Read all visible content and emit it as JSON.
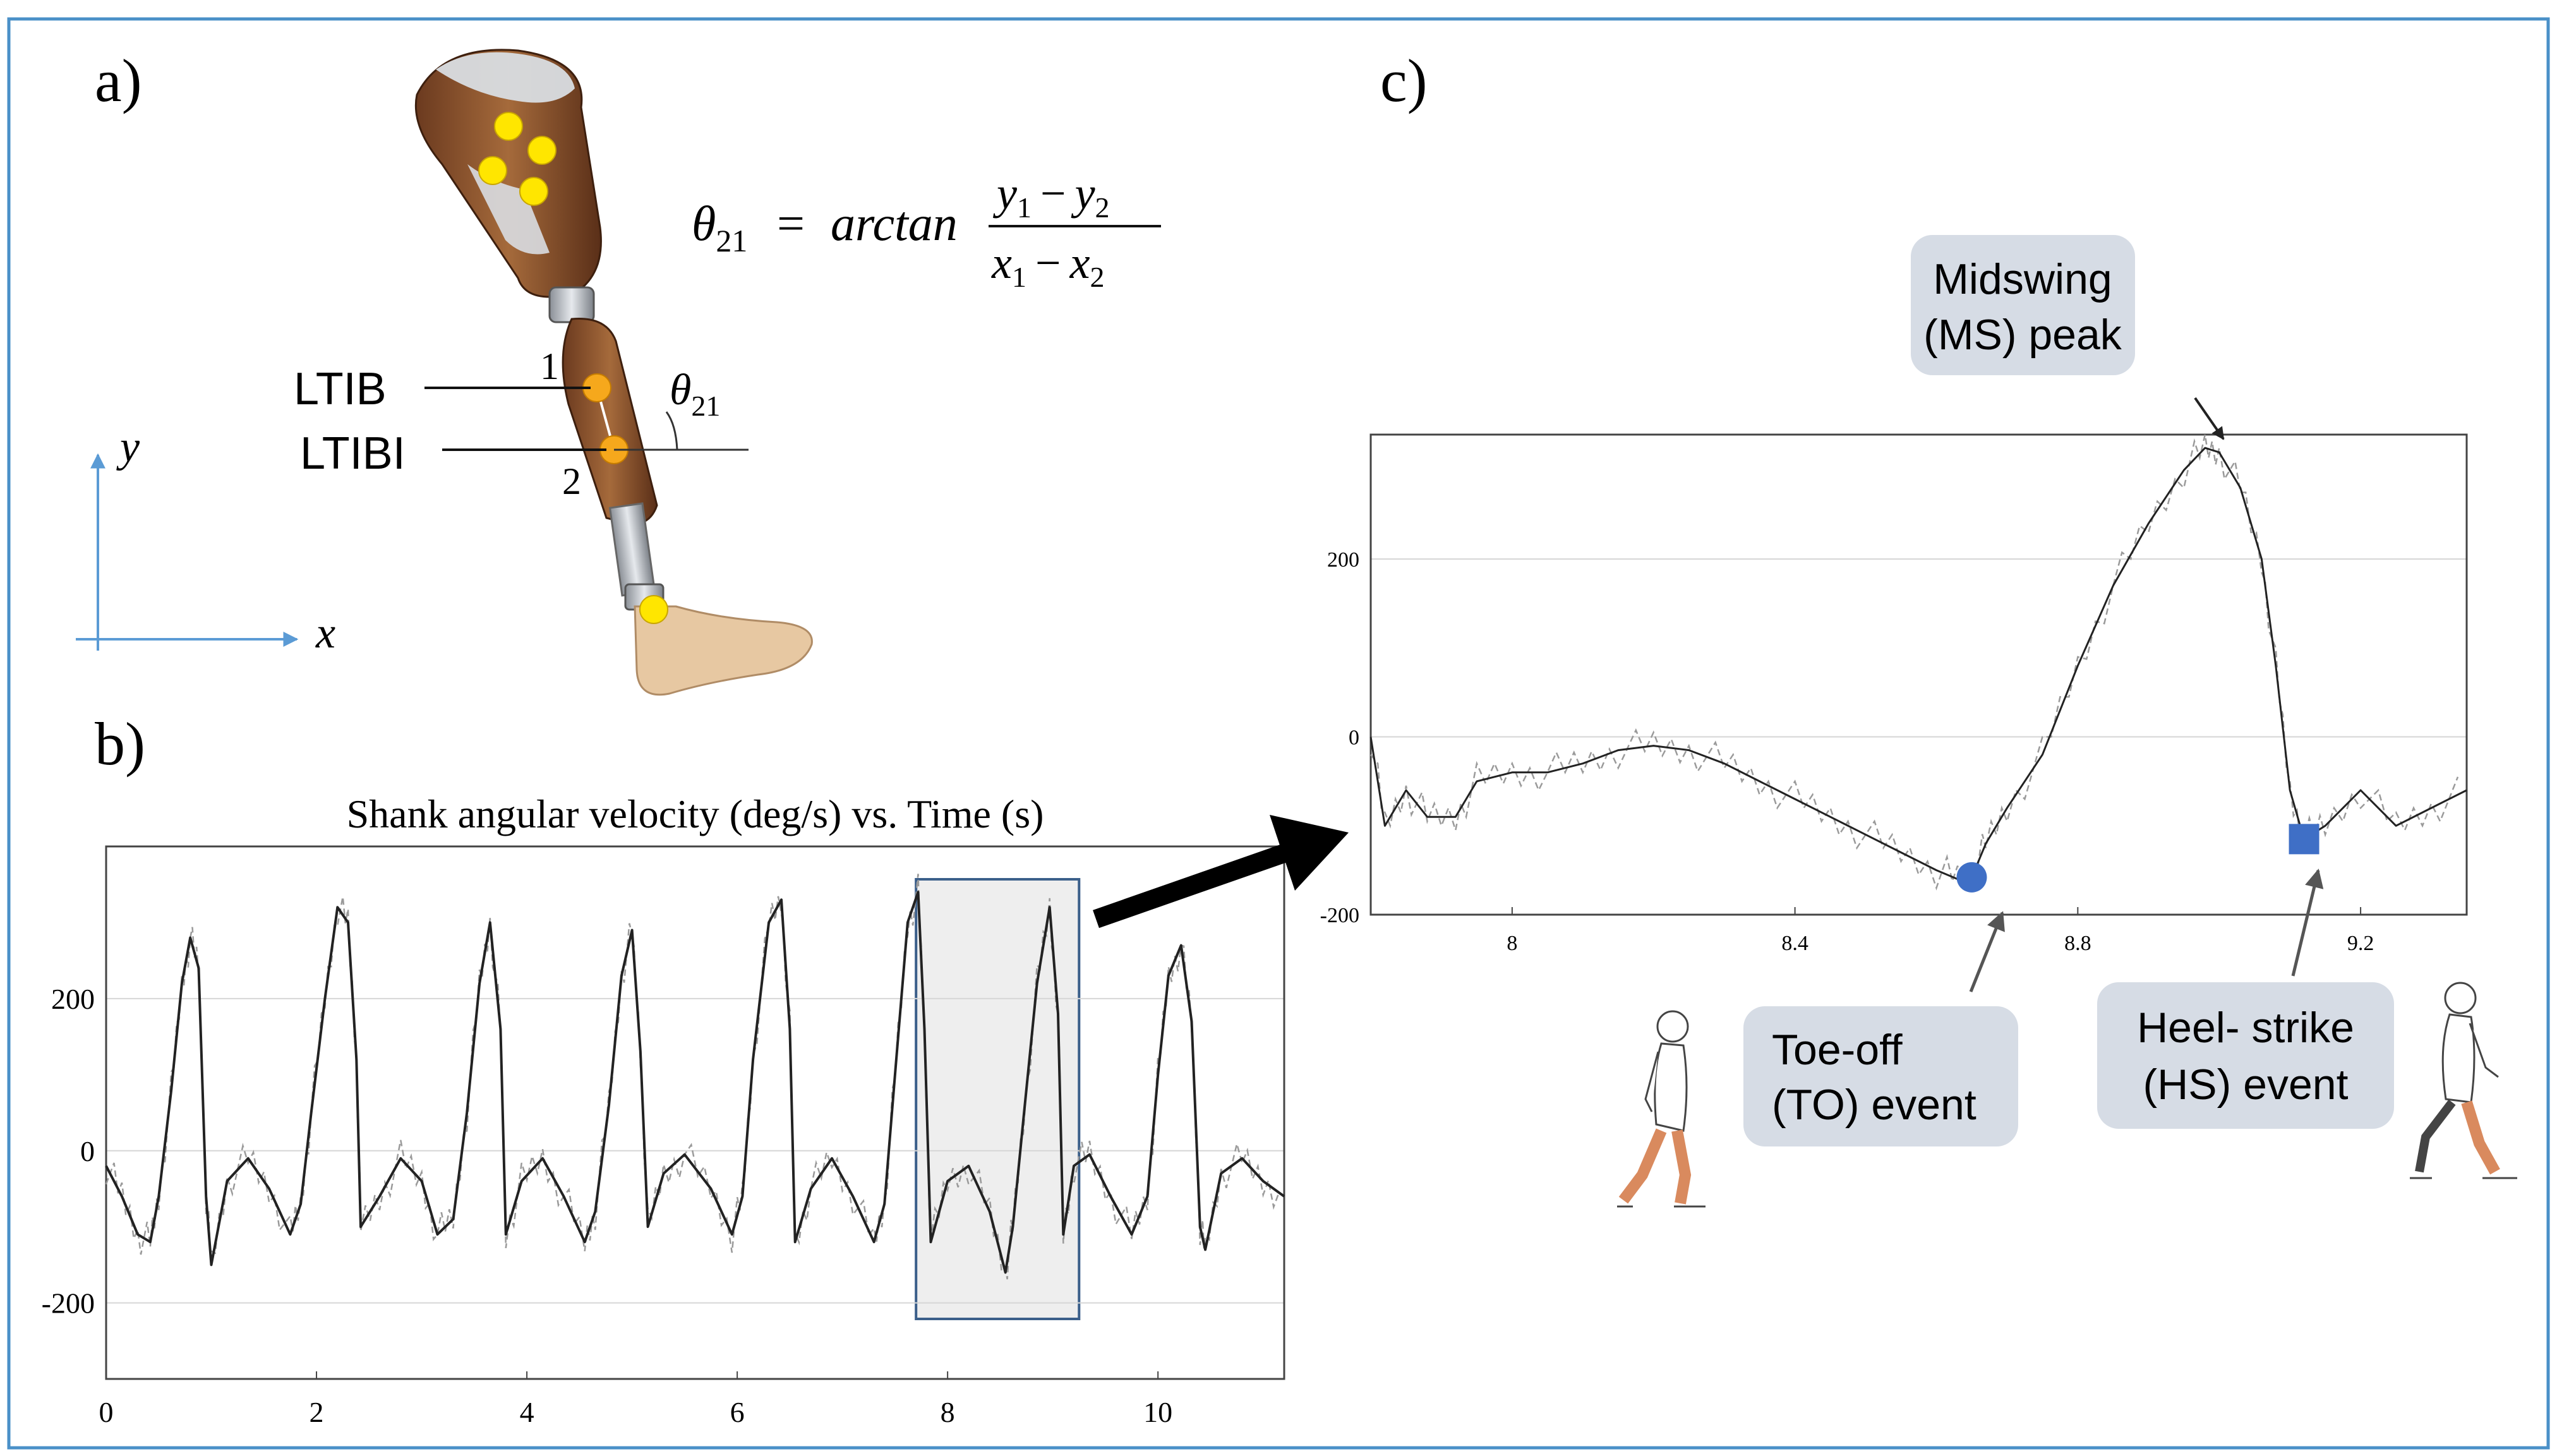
{
  "panels": {
    "a": "a)",
    "b": "b)",
    "c": "c)"
  },
  "leg": {
    "marker_top_label": "LTIB",
    "marker_bottom_label": "LTIBI",
    "marker_top_number": "1",
    "marker_bottom_number": "2",
    "angle_label_symbol": "θ",
    "angle_label_sub": "21",
    "axis_x_label": "x",
    "axis_y_label": "y"
  },
  "equation": {
    "lhs_symbol": "θ",
    "lhs_sub": "21",
    "equals": "=",
    "func": "arctan",
    "num_a": "y",
    "num_a_sub": "1",
    "num_minus": "−",
    "num_b": "y",
    "num_b_sub": "2",
    "den_a": "x",
    "den_a_sub": "1",
    "den_minus": "−",
    "den_b": "x",
    "den_b_sub": "2"
  },
  "annotations": {
    "midswing_line1": "Midswing",
    "midswing_line2": "(MS) peak",
    "toeoff_line1": "Toe-off",
    "toeoff_line2": "(TO) event",
    "heel_line1": "Heel- strike",
    "heel_line2": "(HS) event"
  },
  "colors": {
    "frame": "#4a90c8",
    "axis_arrow": "#5b9bd5",
    "callout_bg": "#d6dce5",
    "marker_blue": "#3f6fc6",
    "highlight_fill": "#eeeeee",
    "highlight_stroke": "#3b5f8a",
    "marker_yellow": "#ffe600",
    "marker_orange": "#f6a81c",
    "skin": "#f4b490"
  },
  "chart_data": [
    {
      "type": "line",
      "title": "Shank angular velocity (deg/s) vs. Time (s)",
      "xlim": [
        0,
        11.2
      ],
      "ylim": [
        -300,
        400
      ],
      "xticks": [
        "0",
        "2",
        "4",
        "6",
        "8",
        "10"
      ],
      "xtick_values": [
        0,
        2,
        4,
        6,
        8,
        10
      ],
      "yticks": [
        "-200",
        "0",
        "200"
      ],
      "ytick_values": [
        -200,
        0,
        200
      ],
      "grid": true,
      "highlight_range": [
        7.7,
        9.25
      ],
      "series": [
        {
          "style": "solid",
          "x": [
            0,
            0.15,
            0.3,
            0.42,
            0.5,
            0.62,
            0.72,
            0.8,
            0.88,
            0.95,
            1.0,
            1.15,
            1.35,
            1.55,
            1.75,
            1.85,
            1.95,
            2.08,
            2.2,
            2.3,
            2.38,
            2.42,
            2.6,
            2.8,
            3.0,
            3.15,
            3.3,
            3.43,
            3.55,
            3.65,
            3.75,
            3.8,
            3.95,
            4.15,
            4.35,
            4.55,
            4.65,
            4.78,
            4.9,
            5.0,
            5.08,
            5.15,
            5.3,
            5.5,
            5.75,
            5.95,
            6.05,
            6.15,
            6.3,
            6.42,
            6.5,
            6.55,
            6.7,
            6.9,
            7.1,
            7.3,
            7.4,
            7.5,
            7.62,
            7.72,
            7.78,
            7.84,
            8.0,
            8.2,
            8.4,
            8.55,
            8.62,
            8.72,
            8.85,
            8.97,
            9.05,
            9.1,
            9.2,
            9.35,
            9.55,
            9.75,
            9.9,
            10.0,
            10.1,
            10.22,
            10.32,
            10.4,
            10.45,
            10.6,
            10.8,
            11.0,
            11.2
          ],
          "y": [
            -20,
            -60,
            -110,
            -120,
            -60,
            80,
            220,
            280,
            240,
            -60,
            -150,
            -40,
            -10,
            -50,
            -110,
            -70,
            50,
            200,
            320,
            300,
            120,
            -100,
            -60,
            -10,
            -40,
            -110,
            -90,
            50,
            220,
            300,
            160,
            -110,
            -40,
            -10,
            -60,
            -120,
            -80,
            60,
            230,
            290,
            130,
            -100,
            -30,
            -5,
            -50,
            -110,
            -60,
            120,
            300,
            330,
            160,
            -120,
            -50,
            -10,
            -60,
            -120,
            -70,
            100,
            300,
            340,
            160,
            -120,
            -40,
            -20,
            -80,
            -160,
            -100,
            40,
            220,
            320,
            180,
            -110,
            -20,
            -5,
            -60,
            -110,
            -60,
            100,
            230,
            270,
            170,
            -100,
            -130,
            -30,
            -10,
            -40,
            -60
          ]
        }
      ]
    },
    {
      "type": "line",
      "title": "",
      "xlim": [
        7.8,
        9.35
      ],
      "ylim": [
        -200,
        340
      ],
      "xticks": [
        "8",
        "8.4",
        "8.8",
        "9.2"
      ],
      "xtick_values": [
        8,
        8.4,
        8.8,
        9.2
      ],
      "yticks": [
        "-200",
        "0",
        "200"
      ],
      "ytick_values": [
        -200,
        0,
        200
      ],
      "grid": true,
      "series": [
        {
          "style": "solid",
          "x": [
            7.8,
            7.82,
            7.85,
            7.88,
            7.92,
            7.95,
            8.0,
            8.05,
            8.1,
            8.15,
            8.2,
            8.25,
            8.3,
            8.35,
            8.4,
            8.45,
            8.5,
            8.55,
            8.6,
            8.63,
            8.65,
            8.67,
            8.7,
            8.75,
            8.8,
            8.85,
            8.9,
            8.95,
            8.98,
            9.0,
            9.03,
            9.06,
            9.08,
            9.1,
            9.12,
            9.15,
            9.2,
            9.25,
            9.3,
            9.35
          ],
          "y": [
            0,
            -100,
            -60,
            -90,
            -90,
            -50,
            -40,
            -40,
            -30,
            -15,
            -10,
            -15,
            -30,
            -50,
            -70,
            -90,
            -110,
            -130,
            -150,
            -160,
            -158,
            -120,
            -80,
            -20,
            80,
            170,
            240,
            300,
            325,
            320,
            280,
            200,
            80,
            -60,
            -115,
            -100,
            -60,
            -100,
            -80,
            -60
          ]
        }
      ],
      "events": [
        {
          "name": "Toe-off",
          "x": 8.65,
          "y": -158
        },
        {
          "name": "Heel-strike",
          "x": 9.12,
          "y": -115
        },
        {
          "name": "Midswing",
          "x": 8.98,
          "y": 325
        }
      ]
    }
  ]
}
